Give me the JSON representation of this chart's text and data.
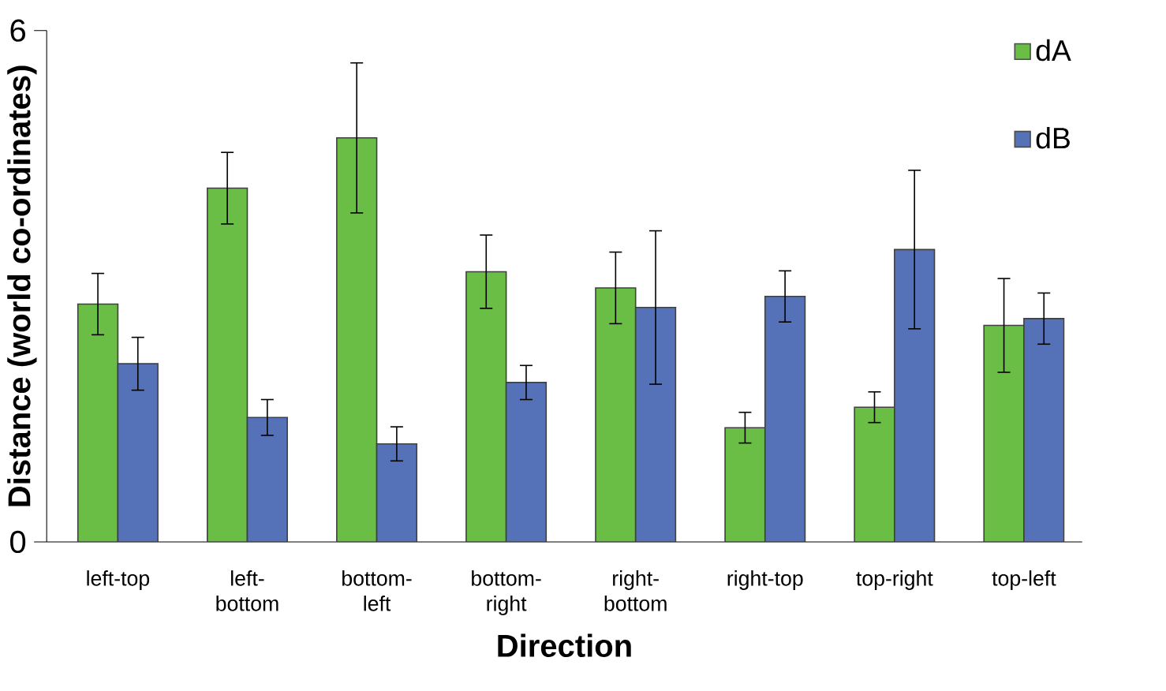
{
  "chart_data": {
    "type": "bar",
    "xlabel": "Direction",
    "ylabel": "Distance (world co-ordinates)",
    "categories": [
      "left-top",
      "left-bottom",
      "bottom-left",
      "bottom-right",
      "right-bottom",
      "right-top",
      "top-right",
      "top-left"
    ],
    "series": [
      {
        "name": "dA",
        "color": "#6abd45",
        "values": [
          2.79,
          4.15,
          4.74,
          3.17,
          2.98,
          1.34,
          1.58,
          2.54
        ],
        "errors": [
          0.36,
          0.42,
          0.88,
          0.43,
          0.42,
          0.18,
          0.18,
          0.55
        ]
      },
      {
        "name": "dB",
        "color": "#5572b8",
        "values": [
          2.09,
          1.46,
          1.15,
          1.87,
          2.75,
          2.88,
          3.43,
          2.62
        ],
        "errors": [
          0.31,
          0.21,
          0.2,
          0.2,
          0.9,
          0.3,
          0.93,
          0.3
        ]
      }
    ],
    "ylim": [
      0,
      6
    ],
    "yticks": [
      0,
      6
    ],
    "grid": false,
    "legend": "top right"
  }
}
